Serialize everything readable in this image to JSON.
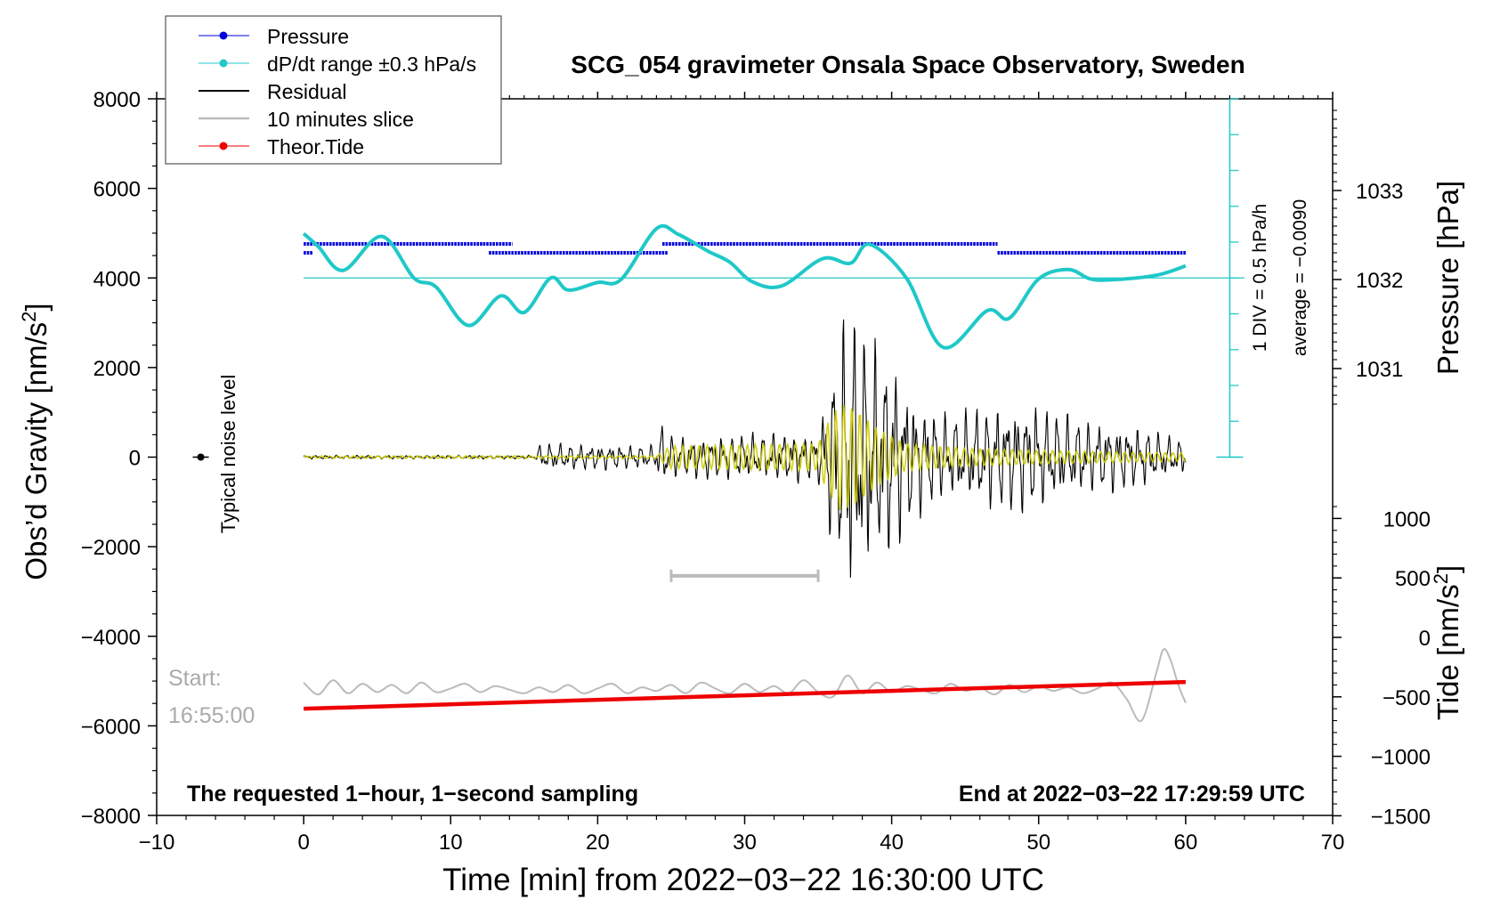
{
  "chart_data": {
    "type": "line",
    "title": "SCG_054 gravimeter Onsala Space Observatory, Sweden",
    "xlabel": "Time [min] from 2022−03−22 16:30:00 UTC",
    "ylabel_left": "Obs’d Gravity [nm/s",
    "ylabel_left_sup": "2",
    "ylabel_left_end": "]",
    "ylabel_right_pressure": "Pressure [hPa]",
    "ylabel_right_tide": "Tide [nm/s",
    "ylabel_right_tide_sup": "2",
    "ylabel_right_tide_end": "]",
    "xlim": [
      -10,
      70
    ],
    "ylim": [
      -8000,
      8000
    ],
    "x_ticks": [
      -10,
      0,
      10,
      20,
      30,
      40,
      50,
      60,
      70
    ],
    "x_tick_labels": [
      "−10",
      "0",
      "10",
      "20",
      "30",
      "40",
      "50",
      "60",
      "70"
    ],
    "y_ticks": [
      8000,
      6000,
      4000,
      2000,
      0,
      -2000,
      -4000,
      -6000,
      -8000
    ],
    "y_tick_labels": [
      "8000",
      "6000",
      "4000",
      "2000",
      "0",
      "−2000",
      "−4000",
      "−6000",
      "−8000"
    ],
    "pressure_ticks": [
      1033,
      1032,
      1031
    ],
    "pressure_tick_labels": [
      "1033",
      "1032",
      "1031"
    ],
    "tide_ticks": [
      1000,
      500,
      0,
      -500,
      -1000,
      -1500
    ],
    "tide_tick_labels": [
      "1000",
      "500",
      "0",
      "−500",
      "−1000",
      "−1500"
    ],
    "legend": [
      {
        "label": "Pressure",
        "color": "#0000dd",
        "marker": "dot"
      },
      {
        "label": "dP/dt range ±0.3 hPa/s",
        "color": "#20c8c8",
        "marker": "dot"
      },
      {
        "label": "Residual",
        "color": "#000000",
        "marker": "line"
      },
      {
        "label": "10 minutes slice",
        "color": "#bbbbbb",
        "marker": "line"
      },
      {
        "label": "Theor.Tide",
        "color": "#ee0000",
        "marker": "dot"
      }
    ],
    "annotations": {
      "noise": "Typical noise level",
      "start_label": "Start:",
      "start_time": "16:55:00",
      "div_label": "1 DIV = 0.5 hPa/h",
      "average_label": "average = −0.0090",
      "bottom_left": "The requested 1−hour, 1−second sampling",
      "bottom_right": "End at 2022−03−22 17:29:59 UTC"
    },
    "slice_range_min": [
      25,
      35
    ],
    "pressure_series": [
      {
        "x": [
          0,
          12.2
        ],
        "y": 1032.4
      },
      {
        "x": [
          0,
          0.6
        ],
        "y": 1032.3
      },
      {
        "x": [
          12.2,
          14.2
        ],
        "y": 1032.4
      },
      {
        "x": [
          12.6,
          24.8
        ],
        "y": 1032.3
      },
      {
        "x": [
          24.4,
          47.2
        ],
        "y": 1032.4
      },
      {
        "x": [
          47.2,
          60
        ],
        "y": 1032.3
      }
    ],
    "dpdt_series": {
      "x": [
        0,
        1,
        2.7,
        5.3,
        7.5,
        9,
        11.2,
        13.4,
        15,
        16.8,
        18,
        20,
        21.6,
        24,
        25.5,
        27.5,
        29,
        30.5,
        32.5,
        35.3,
        37.2,
        38.5,
        41,
        43.5,
        46.5,
        48,
        50,
        52,
        53.5,
        55,
        58,
        60
      ],
      "y": [
        4990,
        4700,
        4170,
        4930,
        4000,
        3800,
        2940,
        3600,
        3230,
        4000,
        3730,
        3900,
        3970,
        5100,
        4970,
        4600,
        4350,
        3920,
        3820,
        4430,
        4330,
        4750,
        4000,
        2450,
        3270,
        3100,
        3980,
        4190,
        3980,
        3960,
        4060,
        4270
      ]
    },
    "dpdt_reference_y": 4000,
    "residual_envelope": {
      "x": [
        0,
        15.8,
        16,
        24,
        24.3,
        24.6,
        25.5,
        35,
        36,
        37,
        38,
        39,
        40,
        41,
        42,
        44,
        46,
        48,
        49.5,
        51,
        53,
        55,
        57,
        59,
        60
      ],
      "y": [
        40,
        40,
        300,
        250,
        800,
        550,
        450,
        550,
        2100,
        3300,
        2800,
        2400,
        2200,
        1600,
        1200,
        900,
        1100,
        1150,
        1200,
        1000,
        800,
        750,
        650,
        450,
        350
      ]
    },
    "filtered_envelope": {
      "x": [
        0,
        24,
        25,
        35,
        35.5,
        36.5,
        37.5,
        39,
        41,
        45,
        50,
        60
      ],
      "y": [
        25,
        30,
        250,
        300,
        700,
        1200,
        1100,
        650,
        300,
        200,
        150,
        90
      ]
    },
    "slice_trace": {
      "x": [
        0,
        1,
        2,
        3,
        4,
        5,
        6,
        7,
        8,
        9,
        10,
        11,
        12,
        13,
        14,
        15,
        16,
        17,
        18,
        19,
        20,
        21,
        22,
        23,
        24,
        25,
        26,
        27,
        28,
        29,
        30,
        31,
        32,
        33,
        34,
        35,
        36,
        37,
        38,
        39,
        40,
        41,
        42,
        43,
        44,
        45,
        46,
        47,
        48,
        49,
        50,
        51,
        52,
        53,
        54,
        55,
        56,
        57,
        58,
        58.5,
        59,
        59.5,
        60
      ],
      "y": [
        -380,
        -480,
        -360,
        -470,
        -390,
        -460,
        -400,
        -470,
        -380,
        -460,
        -430,
        -390,
        -460,
        -410,
        -440,
        -470,
        -420,
        -460,
        -400,
        -470,
        -430,
        -390,
        -470,
        -420,
        -450,
        -400,
        -470,
        -380,
        -430,
        -470,
        -390,
        -460,
        -410,
        -470,
        -360,
        -460,
        -500,
        -320,
        -470,
        -380,
        -460,
        -410,
        -440,
        -470,
        -390,
        -450,
        -420,
        -480,
        -400,
        -460,
        -410,
        -450,
        -420,
        -470,
        -430,
        -380,
        -520,
        -700,
        -300,
        -100,
        -200,
        -400,
        -550
      ]
    },
    "tide_series": {
      "x": [
        0,
        60
      ],
      "y": [
        -600,
        -375
      ]
    },
    "noise_point": {
      "x": -7,
      "y": 0
    }
  }
}
